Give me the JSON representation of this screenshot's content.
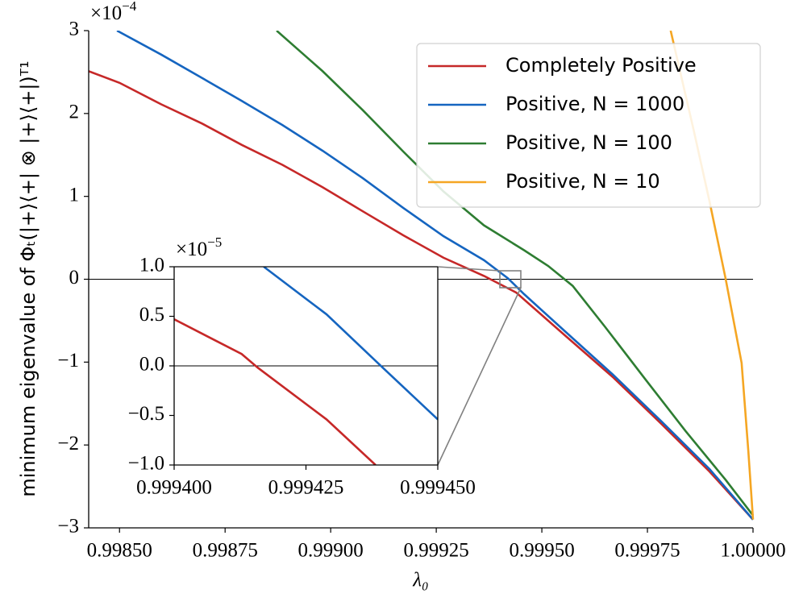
{
  "chart_data": [
    {
      "type": "line",
      "xlabel": "λ₀",
      "ylabel": "minimum eigenvalue of Φₜ(|+⟩⟨+| ⊗ |+⟩⟨+|)ᵀ¹",
      "offset_text": {
        "base": "×10",
        "exponent": "−4"
      },
      "xlim": [
        0.998427,
        1.0
      ],
      "ylim": [
        -3,
        3
      ],
      "xticks": [
        {
          "value": 0.9985,
          "label": "0.99850"
        },
        {
          "value": 0.99875,
          "label": "0.99875"
        },
        {
          "value": 0.999,
          "label": "0.99900"
        },
        {
          "value": 0.99925,
          "label": "0.99925"
        },
        {
          "value": 0.9995,
          "label": "0.99950"
        },
        {
          "value": 0.99975,
          "label": "0.99975"
        },
        {
          "value": 1.0,
          "label": "1.00000"
        }
      ],
      "yticks": [
        {
          "value": -3,
          "label": "−3"
        },
        {
          "value": -2,
          "label": "−2"
        },
        {
          "value": -1,
          "label": "−1"
        },
        0,
        1,
        2,
        3
      ],
      "legend": "upper right",
      "series": [
        {
          "name": "Completely Positive",
          "color": "#c62828",
          "x": [
            0.998427,
            0.9985,
            0.998599,
            0.998695,
            0.99879,
            0.998886,
            0.998981,
            0.999076,
            0.999172,
            0.999267,
            0.999363,
            0.999439,
            0.999553,
            0.999668,
            0.999782,
            0.999897,
            1.0
          ],
          "values": [
            2.51,
            2.37,
            2.11,
            1.88,
            1.62,
            1.38,
            1.11,
            0.82,
            0.53,
            0.26,
            0.04,
            -0.16,
            -0.67,
            -1.18,
            -1.74,
            -2.32,
            -2.9
          ]
        },
        {
          "name": "Positive, N = 1000",
          "color": "#1565c0",
          "x": [
            0.998494,
            0.998599,
            0.998695,
            0.99879,
            0.998886,
            0.998981,
            0.999076,
            0.999172,
            0.999267,
            0.999363,
            0.99942,
            0.999458,
            0.999553,
            0.999668,
            0.999782,
            0.999897,
            1.0
          ],
          "values": [
            3.0,
            2.71,
            2.43,
            2.15,
            1.86,
            1.55,
            1.22,
            0.86,
            0.52,
            0.23,
            0.01,
            -0.18,
            -0.62,
            -1.15,
            -1.71,
            -2.29,
            -2.9
          ]
        },
        {
          "name": "Positive, N = 100",
          "color": "#2e7d32",
          "x": [
            0.998872,
            0.998981,
            0.999076,
            0.999172,
            0.999267,
            0.999363,
            0.999458,
            0.999515,
            0.999573,
            0.999649,
            0.999744,
            0.99984,
            0.999935,
            1.0
          ],
          "values": [
            3.0,
            2.51,
            2.04,
            1.54,
            1.06,
            0.65,
            0.35,
            0.16,
            -0.08,
            -0.57,
            -1.2,
            -1.83,
            -2.42,
            -2.85
          ]
        },
        {
          "name": "Positive, N = 10",
          "color": "#f5a623",
          "x": [
            0.999805,
            0.999859,
            0.999897,
            0.999935,
            0.999973,
            0.999989,
            1.0
          ],
          "values": [
            3.0,
            1.81,
            0.94,
            0.01,
            -1.01,
            -2.08,
            -2.9
          ]
        }
      ]
    },
    {
      "type": "line",
      "offset_text": {
        "base": "×10",
        "exponent": "−5"
      },
      "xlim": [
        0.9994,
        0.99945
      ],
      "ylim": [
        -1,
        1
      ],
      "xticks": [
        {
          "value": 0.9994,
          "label": "0.999400"
        },
        {
          "value": 0.999425,
          "label": "0.999425"
        },
        {
          "value": 0.99945,
          "label": "0.999450"
        }
      ],
      "yticks": [
        {
          "value": -1,
          "label": "−1.0"
        },
        {
          "value": -0.5,
          "label": "−0.5"
        },
        {
          "value": 0,
          "label": "0.0"
        },
        0.5,
        {
          "value": 1,
          "label": "1.0"
        }
      ],
      "series": [
        {
          "color": "#c62828",
          "x": [
            0.9994,
            0.9994128,
            0.9994159,
            0.9994289,
            0.9994382
          ],
          "values": [
            0.47,
            0.12,
            -0.02,
            -0.54,
            -1.0
          ]
        },
        {
          "color": "#1565c0",
          "x": [
            0.999417,
            0.9994289,
            0.9994396,
            0.99945
          ],
          "values": [
            1.0,
            0.52,
            -0.02,
            -0.54
          ]
        }
      ]
    }
  ]
}
